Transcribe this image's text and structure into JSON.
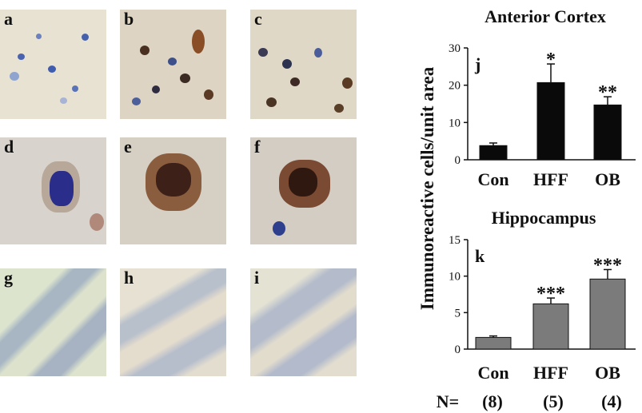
{
  "panels": [
    {
      "letter": "a"
    },
    {
      "letter": "b"
    },
    {
      "letter": "c"
    },
    {
      "letter": "d"
    },
    {
      "letter": "e"
    },
    {
      "letter": "f"
    },
    {
      "letter": "g"
    },
    {
      "letter": "h"
    },
    {
      "letter": "i"
    }
  ],
  "colors": {
    "tissue_light": "#e6dfce",
    "nucleus_blue": "#3b57a8",
    "stain_brown": "#6b3a1d",
    "bar_black": "#0a0a0a",
    "bar_gray": "#7b7b7b"
  },
  "shared": {
    "ylabel": "Immunoreactive cells/unit area",
    "n_label": "N=",
    "n_values": [
      "(8)",
      "(5)",
      "(4)"
    ]
  },
  "chart_data": [
    {
      "type": "bar",
      "title": "Anterior Cortex",
      "panel_letter": "j",
      "categories": [
        "Con",
        "HFF",
        "OB"
      ],
      "values": [
        3.8,
        20.7,
        14.7
      ],
      "errors": [
        0.7,
        5.0,
        2.2
      ],
      "significance": [
        "",
        "*",
        "**"
      ],
      "ylim": [
        0,
        30
      ],
      "yticks": [
        0,
        10,
        20,
        30
      ],
      "color": "#0a0a0a"
    },
    {
      "type": "bar",
      "title": "Hippocampus",
      "panel_letter": "k",
      "categories": [
        "Con",
        "HFF",
        "OB"
      ],
      "values": [
        1.6,
        6.2,
        9.6
      ],
      "errors": [
        0.2,
        0.8,
        1.3
      ],
      "significance": [
        "",
        "***",
        "***"
      ],
      "ylim": [
        0,
        15
      ],
      "yticks": [
        0,
        5,
        10,
        15
      ],
      "color": "#7b7b7b"
    }
  ]
}
